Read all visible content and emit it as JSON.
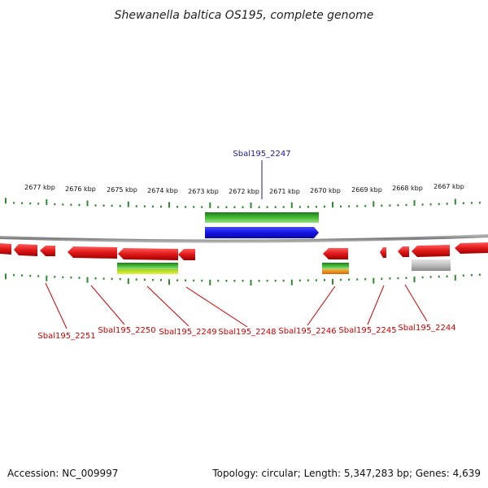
{
  "title": "Shewanella baltica OS195, complete genome",
  "footer": {
    "accession": "Accession: NC_009997",
    "summary": "Topology: circular; Length: 5,347,283 bp; Genes: 4,639"
  },
  "colors": {
    "forward_gene": "#e01818",
    "selected_gene": "#1414e6",
    "backbone": "#888888",
    "tick": "#2f8a2f",
    "label_red": "#cc0000",
    "label_blue": "#1a1a9c",
    "green_bar": "#44bb33",
    "orange_bar": "#ee8a10",
    "gray_gene": "#bdbdbd"
  },
  "kbp_labels": [
    "2677 kbp",
    "2676 kbp",
    "2675 kbp",
    "2674 kbp",
    "2673 kbp",
    "2672 kbp",
    "2671 kbp",
    "2670 kbp",
    "2669 kbp",
    "2668 kbp",
    "2667 kbp"
  ],
  "selected_label": "Sbal195_2247",
  "gene_labels": [
    "Sbal195_2251",
    "Sbal195_2250",
    "Sbal195_2249",
    "Sbal195_2248",
    "Sbal195_2246",
    "Sbal195_2245",
    "Sbal195_2244"
  ]
}
